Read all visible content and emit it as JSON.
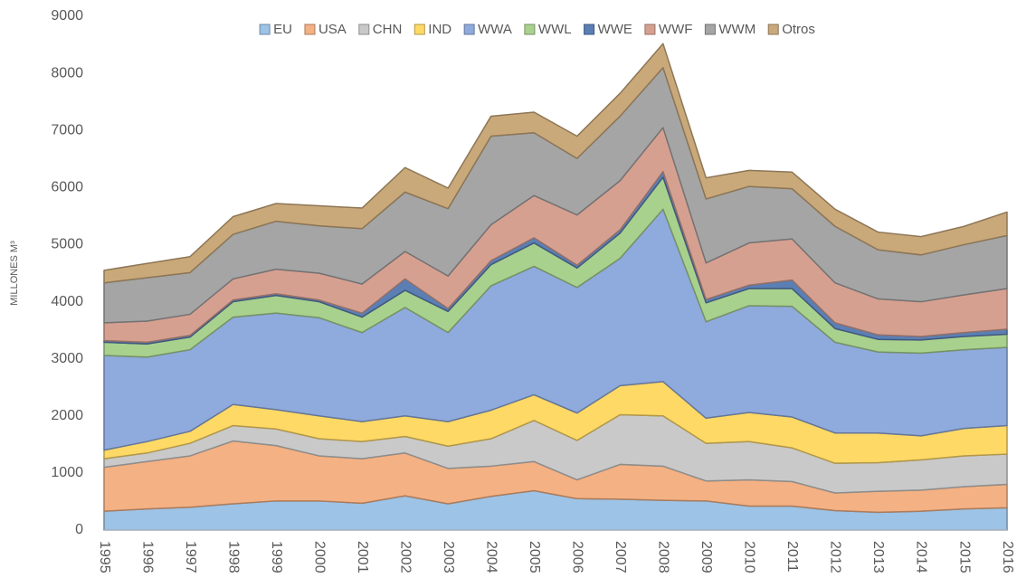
{
  "chart_data": {
    "type": "stacked_area",
    "y_label": "MILLONES M³",
    "categories": [
      "1995",
      "1996",
      "1997",
      "1998",
      "1999",
      "2000",
      "2001",
      "2002",
      "2003",
      "2004",
      "2005",
      "2006",
      "2007",
      "2008",
      "2009",
      "2010",
      "2011",
      "2012",
      "2013",
      "2014",
      "2015",
      "2016"
    ],
    "ylim": [
      0,
      9000
    ],
    "yticks": [
      0,
      1000,
      2000,
      3000,
      4000,
      5000,
      6000,
      7000,
      8000,
      9000
    ],
    "grid": false,
    "legend": "top",
    "series": [
      {
        "name": "EU",
        "color": "#9dc3e6",
        "values": [
          330,
          370,
          400,
          460,
          510,
          510,
          470,
          600,
          460,
          590,
          690,
          550,
          540,
          520,
          510,
          420,
          420,
          340,
          310,
          330,
          370,
          390
        ]
      },
      {
        "name": "USA",
        "color": "#f4b183",
        "values": [
          770,
          830,
          900,
          1100,
          970,
          790,
          780,
          750,
          620,
          530,
          510,
          330,
          610,
          600,
          350,
          460,
          430,
          310,
          370,
          370,
          390,
          410
        ]
      },
      {
        "name": "CHN",
        "color": "#c9c9c9",
        "values": [
          150,
          150,
          220,
          270,
          290,
          300,
          300,
          290,
          390,
          480,
          720,
          690,
          870,
          880,
          660,
          670,
          590,
          520,
          500,
          530,
          540,
          530
        ]
      },
      {
        "name": "IND",
        "color": "#ffd966",
        "values": [
          150,
          200,
          210,
          370,
          340,
          400,
          350,
          360,
          430,
          500,
          450,
          480,
          510,
          600,
          440,
          510,
          540,
          530,
          520,
          420,
          480,
          500
        ]
      },
      {
        "name": "WWA",
        "color": "#8faadc",
        "values": [
          1660,
          1480,
          1430,
          1530,
          1690,
          1720,
          1560,
          1900,
          1560,
          2180,
          2250,
          2200,
          2230,
          3020,
          1690,
          1870,
          1940,
          1590,
          1420,
          1450,
          1380,
          1370
        ]
      },
      {
        "name": "WWL",
        "color": "#a9d18e",
        "values": [
          230,
          230,
          220,
          270,
          310,
          280,
          270,
          300,
          370,
          370,
          410,
          340,
          440,
          560,
          330,
          300,
          310,
          240,
          220,
          230,
          230,
          230
        ]
      },
      {
        "name": "WWE",
        "color": "#5b7fb5",
        "values": [
          30,
          30,
          30,
          30,
          30,
          30,
          70,
          200,
          50,
          70,
          90,
          50,
          60,
          100,
          60,
          60,
          150,
          100,
          80,
          60,
          70,
          90
        ]
      },
      {
        "name": "WWF",
        "color": "#d6a091",
        "values": [
          310,
          370,
          370,
          370,
          430,
          470,
          510,
          480,
          570,
          630,
          740,
          880,
          860,
          770,
          640,
          740,
          720,
          700,
          630,
          610,
          660,
          710
        ]
      },
      {
        "name": "WWM",
        "color": "#a5a5a5",
        "values": [
          700,
          760,
          730,
          780,
          840,
          830,
          970,
          1040,
          1180,
          1550,
          1100,
          990,
          1130,
          1050,
          1120,
          990,
          880,
          990,
          860,
          820,
          880,
          930
        ]
      },
      {
        "name": "Otros",
        "color": "#c9a97a",
        "values": [
          220,
          250,
          280,
          310,
          310,
          350,
          360,
          430,
          360,
          350,
          360,
          390,
          400,
          420,
          370,
          280,
          290,
          300,
          310,
          320,
          320,
          410
        ]
      }
    ]
  }
}
